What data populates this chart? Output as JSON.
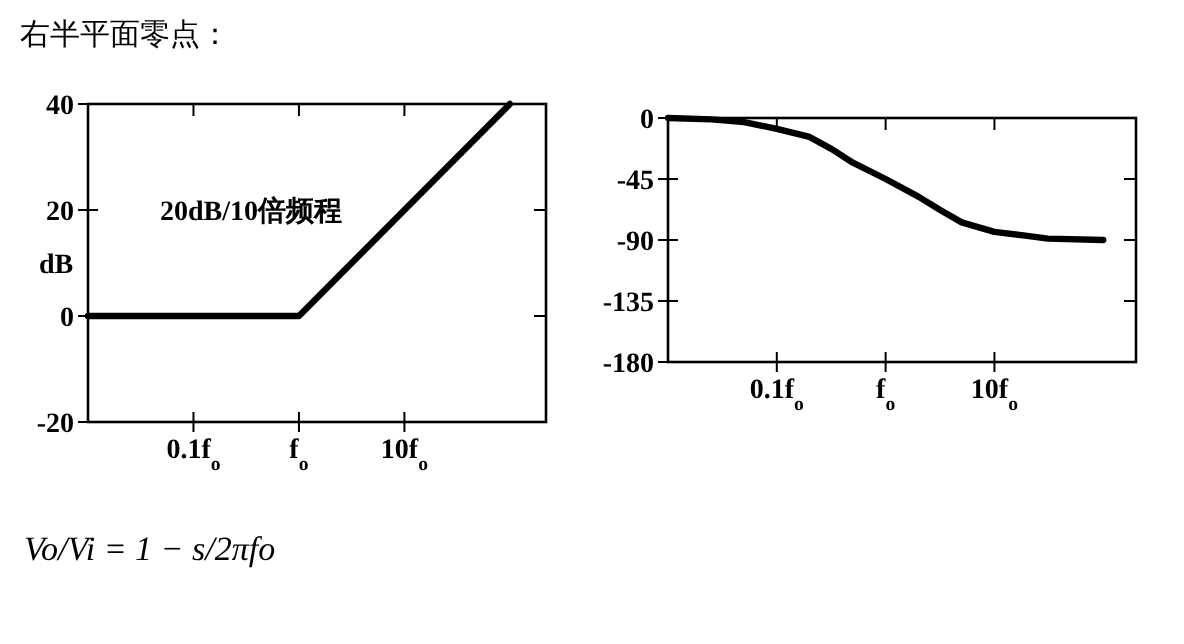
{
  "chart_data": [
    {
      "type": "line",
      "title": "右半平面零点：",
      "ylabel": "dB",
      "annotations": [
        "20dB/10倍频程",
        "Vo/Vi = 1 − s/2πfo"
      ],
      "log": "x",
      "x": [
        0.01,
        1,
        100
      ],
      "values": [
        0,
        0,
        40
      ],
      "color": "#000000",
      "xlim": [
        0.01,
        220
      ],
      "ylim": [
        -20,
        40
      ],
      "xticks": [
        {
          "value": 0.1,
          "label": "0.1f$_{o}$"
        },
        {
          "value": 1,
          "label": "f$_{o}$"
        },
        {
          "value": 10,
          "label": "10f$_{o}$"
        }
      ],
      "yticks": [
        -20,
        0,
        20,
        40
      ]
    },
    {
      "type": "line",
      "log": "x",
      "x": [
        0.01,
        0.025,
        0.05,
        0.1,
        0.2,
        0.32,
        0.5,
        1,
        2,
        3.2,
        5,
        10,
        20,
        31,
        100
      ],
      "values": [
        0,
        -1,
        -3,
        -8,
        -14,
        -23,
        -33,
        -45,
        -58,
        -68,
        -77,
        -84,
        -87,
        -89,
        -90
      ],
      "color": "#000000",
      "xlim": [
        0.01,
        200
      ],
      "ylim": [
        -180,
        0
      ],
      "xticks": [
        {
          "value": 0.1,
          "label": "0.1f$_{o}$"
        },
        {
          "value": 1,
          "label": "f$_{o}$"
        },
        {
          "value": 10,
          "label": "10f$_{o}$"
        }
      ],
      "yticks": [
        -180,
        -135,
        -90,
        -45,
        0
      ]
    }
  ]
}
